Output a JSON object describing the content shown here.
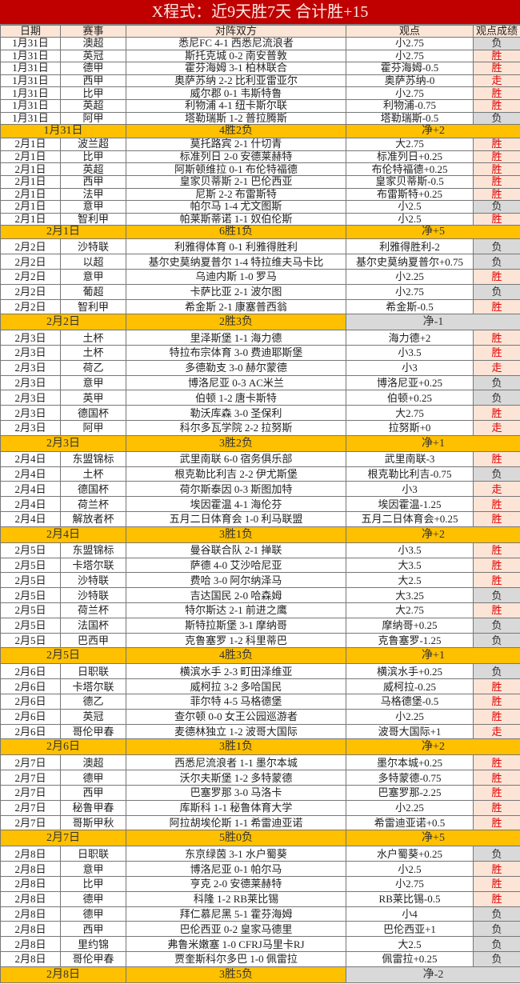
{
  "title": "X程式：近9天胜7天 合计胜+15",
  "headers": [
    "日期",
    "赛事",
    "对阵双方",
    "观点",
    "观点成绩"
  ],
  "colors": {
    "title_bg": "#c00000",
    "header_bg": "#fbe5d6",
    "summary_bg": "#ffc000",
    "win_bg": "#fce4d6",
    "win_text": "#e00000",
    "lose_bg": "#d9d9d9"
  },
  "blocks": [
    {
      "rows": [
        [
          "1月31日",
          "澳超",
          "悉尼FC 4-1 西悉尼流浪者",
          "小2.75",
          "负"
        ],
        [
          "1月31日",
          "英冠",
          "斯托克城 0-2 南安普敦",
          "小2.75",
          "胜"
        ],
        [
          "1月31日",
          "德甲",
          "霍芬海姆 3-1 柏林联合",
          "霍芬海姆-0.5",
          "胜"
        ],
        [
          "1月31日",
          "西甲",
          "奥萨苏纳 2-2 比利亚雷亚尔",
          "奥萨苏纳-0",
          "走"
        ],
        [
          "1月31日",
          "比甲",
          "威尔郡 0-1 韦斯特鲁",
          "小2.75",
          "胜"
        ],
        [
          "1月31日",
          "英超",
          "利物浦 4-1 纽卡斯尔联",
          "利物浦-0.75",
          "胜"
        ],
        [
          "1月31日",
          "阿甲",
          "塔勒瑞斯 1-2 普拉腾斯",
          "塔勒瑞斯-0.5",
          "负"
        ]
      ],
      "summary": {
        "date": "1月31日",
        "record": "4胜2负",
        "net": "净+2"
      }
    },
    {
      "rows": [
        [
          "2月1日",
          "波兰超",
          "莫托路宾 2-1 什切青",
          "大2.75",
          "胜"
        ],
        [
          "2月1日",
          "比甲",
          "标准列日 2-0 安德莱赫特",
          "标准列日+0.25",
          "胜"
        ],
        [
          "2月1日",
          "英超",
          "阿斯顿维拉 0-1 布伦特福德",
          "布伦特福德+0.25",
          "胜"
        ],
        [
          "2月1日",
          "西甲",
          "皇家贝蒂斯 2-1 巴伦西亚",
          "皇家贝蒂斯-0.5",
          "胜"
        ],
        [
          "2月1日",
          "法甲",
          "尼斯 2-2 布雷斯特",
          "布雷斯特+0.25",
          "胜"
        ],
        [
          "2月1日",
          "意甲",
          "帕尔马 1-4 尤文图斯",
          "小2.5",
          "负"
        ],
        [
          "2月1日",
          "智利甲",
          "帕莱斯蒂诺 1-1 奴伯伦斯",
          "小2.5",
          "胜"
        ]
      ],
      "summary": {
        "date": "2月1日",
        "record": "6胜1负",
        "net": "净+5"
      }
    },
    {
      "rows": [
        [
          "2月2日",
          "沙特联",
          "利雅得体育 0-1 利雅得胜利",
          "利雅得胜利-2",
          "负"
        ],
        [
          "2月2日",
          "以超",
          "基尔史莫纳夏普尔 1-4 特拉维夫马卡比",
          "基尔史莫纳夏普尔+0.75",
          "负"
        ],
        [
          "2月2日",
          "意甲",
          "乌迪内斯 1-0 罗马",
          "小2.25",
          "胜"
        ],
        [
          "2月2日",
          "葡超",
          "卡萨比亚 2-1 波尔图",
          "小2.75",
          "负"
        ],
        [
          "2月2日",
          "智利甲",
          "希金斯 2-1 康塞普西翁",
          "希金斯-0.5",
          "胜"
        ]
      ],
      "summary": {
        "date": "2月2日",
        "record": "2胜3负",
        "net": "净-1"
      }
    },
    {
      "rows": [
        [
          "2月3日",
          "土杯",
          "里泽斯堡 1-1 海力德",
          "海力德+2",
          "胜"
        ],
        [
          "2月3日",
          "土杯",
          "特拉布宗体育 3-0 费迪耶斯堡",
          "小3.5",
          "胜"
        ],
        [
          "2月3日",
          "荷乙",
          "多德勒支 3-0 赫尔蒙德",
          "小3",
          "走"
        ],
        [
          "2月3日",
          "意甲",
          "博洛尼亚 0-3 AC米兰",
          "博洛尼亚+0.25",
          "负"
        ],
        [
          "2月3日",
          "英甲",
          "伯顿 1-2 唐卡斯特",
          "伯顿+0.25",
          "负"
        ],
        [
          "2月3日",
          "德国杯",
          "勒沃库森 3-0 圣保利",
          "大2.75",
          "胜"
        ],
        [
          "2月3日",
          "阿甲",
          "科尔多瓦学院 2-2 拉努斯",
          "拉努斯+0",
          "走"
        ]
      ],
      "summary": {
        "date": "2月3日",
        "record": "3胜2负",
        "net": "净+1"
      }
    },
    {
      "rows": [
        [
          "2月4日",
          "东盟锦标",
          "武里南联 6-0 宿务俱乐部",
          "武里南联-3",
          "胜"
        ],
        [
          "2月4日",
          "土杯",
          "根克勒比利吉 2-2 伊尤斯堡",
          "根克勒比利吉-0.75",
          "负"
        ],
        [
          "2月4日",
          "德国杯",
          "荷尔斯泰因 0-3 斯图加特",
          "小3",
          "走"
        ],
        [
          "2月4日",
          "荷兰杯",
          "埃因霍温 4-1 海伦芬",
          "埃因霍温-1.25",
          "胜"
        ],
        [
          "2月4日",
          "解放者杯",
          "五月二日体育会 1-0 利马联盟",
          "五月二日体育会+0.25",
          "胜"
        ]
      ],
      "summary": {
        "date": "2月4日",
        "record": "3胜1负",
        "net": "净+2"
      }
    },
    {
      "rows": [
        [
          "2月5日",
          "东盟锦标",
          "曼谷联合队 2-1 掸联",
          "小3.5",
          "胜"
        ],
        [
          "2月5日",
          "卡塔尔联",
          "萨德 4-0 艾沙哈尼亚",
          "大3.5",
          "胜"
        ],
        [
          "2月5日",
          "沙特联",
          "费哈 3-0 阿尔纳泽马",
          "大2.5",
          "胜"
        ],
        [
          "2月5日",
          "沙特联",
          "吉达国民 2-0 哈森姆",
          "大3.25",
          "负"
        ],
        [
          "2月5日",
          "荷兰杯",
          "特尔斯达 2-1 前进之鹰",
          "大2.75",
          "胜"
        ],
        [
          "2月5日",
          "法国杯",
          "斯特拉斯堡 3-1 摩纳哥",
          "摩纳哥+0.25",
          "负"
        ],
        [
          "2月5日",
          "巴西甲",
          "克鲁塞罗 1-2 科里蒂巴",
          "克鲁塞罗-1.25",
          "负"
        ]
      ],
      "summary": {
        "date": "2月5日",
        "record": "4胜3负",
        "net": "净+1"
      }
    },
    {
      "rows": [
        [
          "2月6日",
          "日职联",
          "横滨水手 2-3 町田泽维亚",
          "横滨水手+0.25",
          "负"
        ],
        [
          "2月6日",
          "卡塔尔联",
          "威柯拉 3-2 多哈国民",
          "威柯拉-0.25",
          "胜"
        ],
        [
          "2月6日",
          "德乙",
          "菲尔特 4-5 马格德堡",
          "马格德堡-0.5",
          "胜"
        ],
        [
          "2月6日",
          "英冠",
          "查尔顿 0-0 女王公园巡游者",
          "小2.25",
          "胜"
        ],
        [
          "2月6日",
          "哥伦甲春",
          "麦德林独立 1-2 波哥大国际",
          "波哥大国际+1",
          "走"
        ]
      ],
      "summary": {
        "date": "2月6日",
        "record": "3胜1负",
        "net": "净+2"
      }
    },
    {
      "rows": [
        [
          "2月7日",
          "澳超",
          "西悉尼流浪者 1-1 墨尔本城",
          "墨尔本城+0.25",
          "胜"
        ],
        [
          "2月7日",
          "德甲",
          "沃尔夫斯堡 1-2 多特蒙德",
          "多特蒙德-0.75",
          "胜"
        ],
        [
          "2月7日",
          "西甲",
          "巴塞罗那 3-0 马洛卡",
          "巴塞罗那-2.25",
          "胜"
        ],
        [
          "2月7日",
          "秘鲁甲春",
          "库斯科 1-1 秘鲁体育大学",
          "小2.25",
          "胜"
        ],
        [
          "2月7日",
          "哥斯甲秋",
          "阿拉胡埃伦斯 1-1 希雷迪亚诺",
          "希雷迪亚诺+0.5",
          "胜"
        ]
      ],
      "summary": {
        "date": "2月7日",
        "record": "5胜0负",
        "net": "净+5"
      }
    },
    {
      "rows": [
        [
          "2月8日",
          "日职联",
          "东京绿茵 3-1 水户蜀葵",
          "水户蜀葵+0.25",
          "负"
        ],
        [
          "2月8日",
          "意甲",
          "博洛尼亚 0-1 帕尔马",
          "小2.5",
          "胜"
        ],
        [
          "2月8日",
          "比甲",
          "亨克 2-0 安德莱赫特",
          "小2.75",
          "胜"
        ],
        [
          "2月8日",
          "德甲",
          "科隆 1-2 RB莱比锡",
          "RB莱比锡-0.5",
          "胜"
        ],
        [
          "2月8日",
          "德甲",
          "拜仁慕尼黑 5-1 霍芬海姆",
          "小4",
          "负"
        ],
        [
          "2月8日",
          "西甲",
          "巴伦西亚 0-2 皇家马德里",
          "巴伦西亚+1",
          "负"
        ],
        [
          "2月8日",
          "里约锦",
          "弗鲁米嫩塞 1-0 CFRJ马里卡RJ",
          "大2.5",
          "负"
        ],
        [
          "2月8日",
          "哥伦甲春",
          "贾奎斯科尔多巴 1-0 佩雷拉",
          "佩雷拉+0.25",
          "负"
        ]
      ],
      "summary": {
        "date": "2月8日",
        "record": "3胜5负",
        "net": "净-2"
      }
    }
  ]
}
